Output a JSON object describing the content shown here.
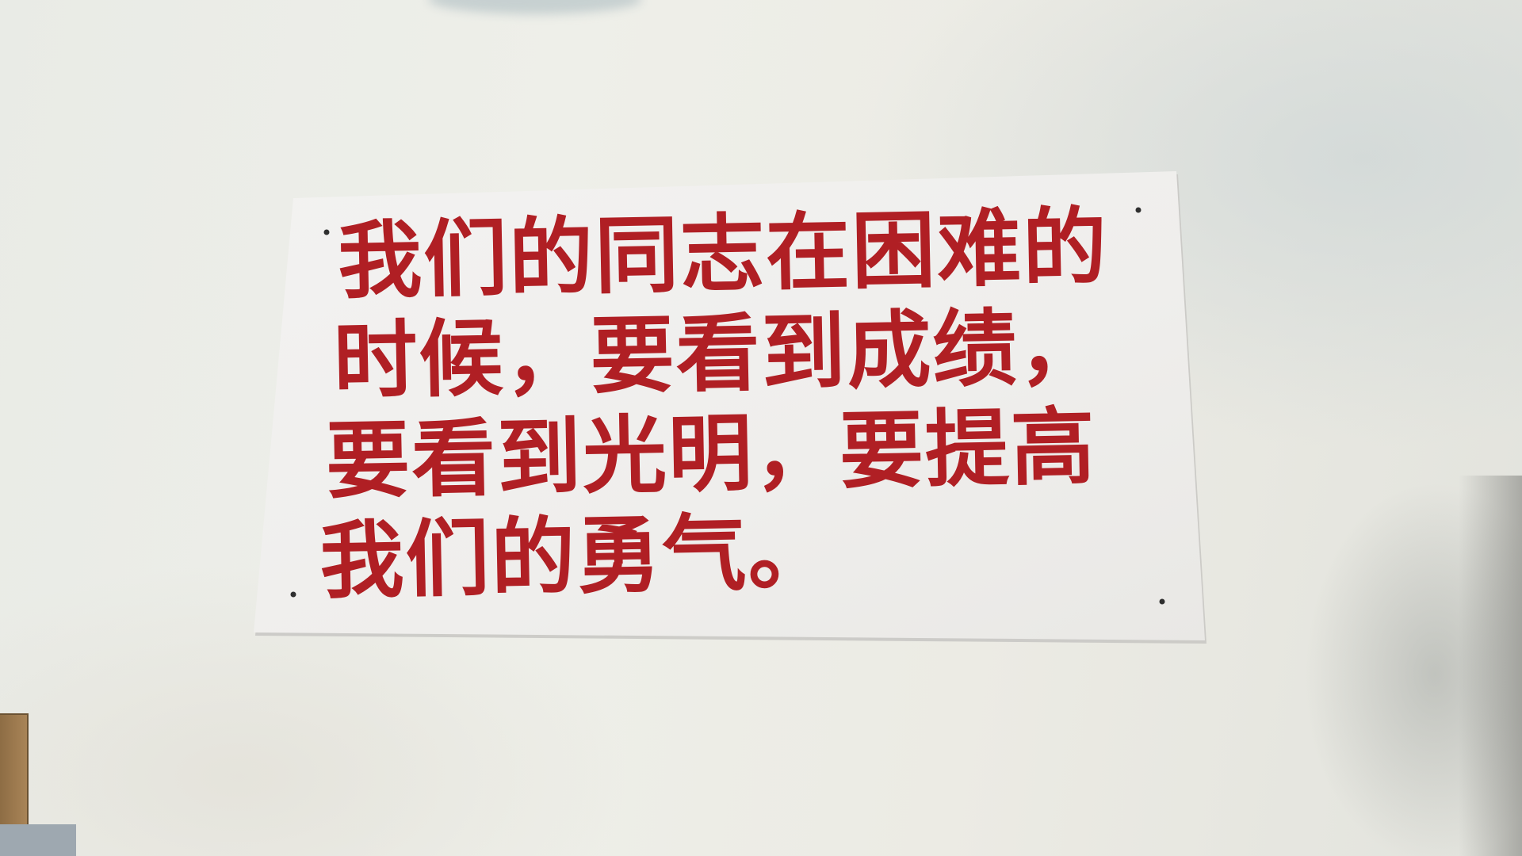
{
  "sign": {
    "lines": [
      "我们的同志在困难的",
      "时候，要看到成绩，",
      "要看到光明，要提高",
      "我们的勇气。"
    ],
    "text_color": "#b01f24",
    "board_color": "#f1f0ee"
  }
}
